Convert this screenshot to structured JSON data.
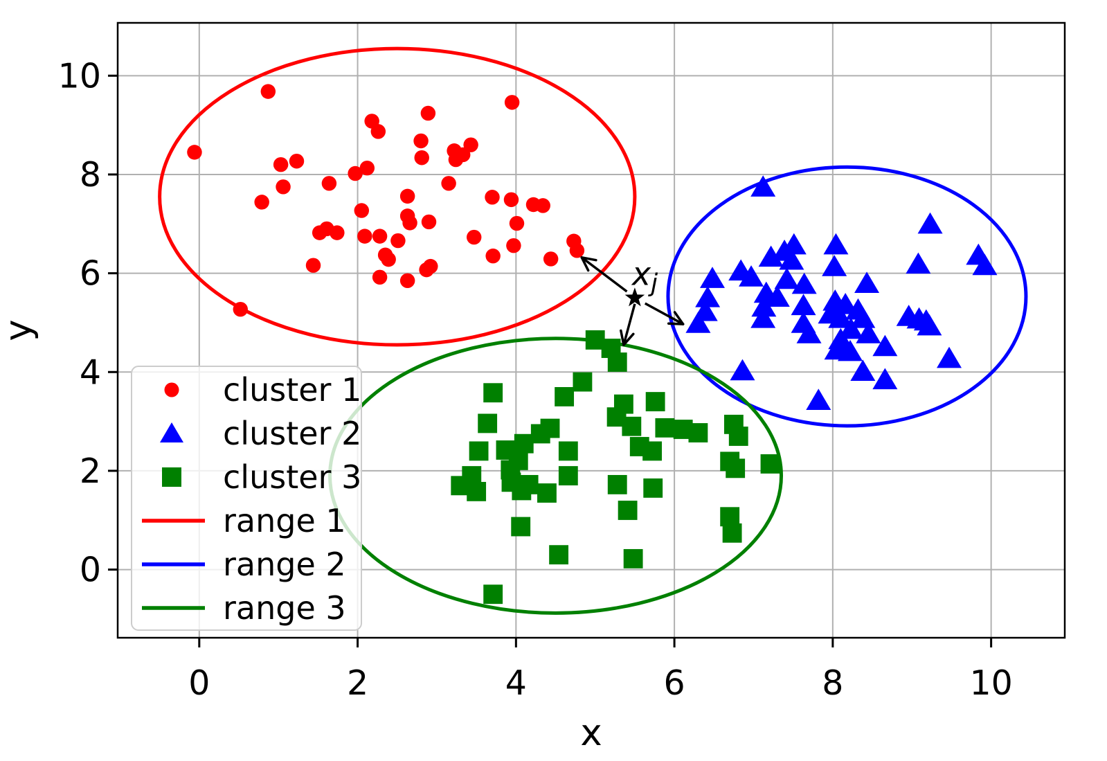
{
  "figure": {
    "background": "#ffffff",
    "axis_color": "#000000",
    "grid_color": "#b0b0b0",
    "legend_border_color": "#cccccc",
    "legend_background": "rgba(255,255,255,0.8)"
  },
  "chart_data": {
    "type": "scatter",
    "title": "",
    "xlabel": "x",
    "ylabel": "y",
    "xlim": [
      -1.03,
      10.93
    ],
    "ylim": [
      -1.38,
      11.07
    ],
    "x_ticks": [
      0,
      2,
      4,
      6,
      8,
      10
    ],
    "y_ticks": [
      0,
      2,
      4,
      6,
      8,
      10
    ],
    "grid": true,
    "legend_position": "lower left",
    "series": [
      {
        "name": "cluster 1",
        "marker": "circle",
        "color": "#ff0000",
        "points": [
          [
            0.87,
            9.68
          ],
          [
            -0.06,
            8.45
          ],
          [
            2.18,
            9.08
          ],
          [
            2.26,
            8.87
          ],
          [
            2.89,
            9.24
          ],
          [
            3.95,
            9.46
          ],
          [
            1.03,
            8.2
          ],
          [
            1.23,
            8.27
          ],
          [
            2.8,
            8.68
          ],
          [
            2.81,
            8.34
          ],
          [
            3.43,
            8.6
          ],
          [
            3.22,
            8.48
          ],
          [
            3.33,
            8.4
          ],
          [
            3.24,
            8.3
          ],
          [
            1.97,
            8.02
          ],
          [
            2.12,
            8.13
          ],
          [
            1.64,
            7.82
          ],
          [
            3.15,
            7.82
          ],
          [
            1.06,
            7.75
          ],
          [
            0.79,
            7.44
          ],
          [
            2.05,
            7.27
          ],
          [
            2.63,
            7.56
          ],
          [
            2.63,
            7.16
          ],
          [
            2.66,
            7.02
          ],
          [
            2.9,
            7.04
          ],
          [
            3.7,
            7.54
          ],
          [
            3.94,
            7.49
          ],
          [
            4.22,
            7.39
          ],
          [
            4.34,
            7.37
          ],
          [
            4.01,
            7.01
          ],
          [
            3.47,
            6.73
          ],
          [
            1.52,
            6.82
          ],
          [
            1.61,
            6.9
          ],
          [
            1.74,
            6.82
          ],
          [
            2.09,
            6.75
          ],
          [
            2.28,
            6.75
          ],
          [
            2.51,
            6.66
          ],
          [
            4.73,
            6.65
          ],
          [
            4.77,
            6.46
          ],
          [
            3.97,
            6.56
          ],
          [
            3.71,
            6.35
          ],
          [
            4.44,
            6.29
          ],
          [
            2.35,
            6.37
          ],
          [
            2.39,
            6.28
          ],
          [
            2.92,
            6.14
          ],
          [
            2.87,
            6.07
          ],
          [
            1.44,
            6.16
          ],
          [
            2.28,
            5.92
          ],
          [
            2.63,
            5.85
          ],
          [
            0.52,
            5.27
          ]
        ]
      },
      {
        "name": "cluster 2",
        "marker": "triangle",
        "color": "#0000ff",
        "points": [
          [
            7.12,
            7.75
          ],
          [
            6.48,
            5.9
          ],
          [
            6.84,
            6.05
          ],
          [
            6.97,
            5.93
          ],
          [
            7.22,
            6.33
          ],
          [
            7.39,
            6.45
          ],
          [
            7.51,
            6.58
          ],
          [
            7.48,
            6.27
          ],
          [
            8.04,
            6.58
          ],
          [
            8.02,
            6.14
          ],
          [
            7.16,
            5.6
          ],
          [
            7.3,
            5.52
          ],
          [
            7.42,
            5.88
          ],
          [
            7.13,
            5.32
          ],
          [
            7.64,
            5.78
          ],
          [
            7.63,
            5.35
          ],
          [
            6.42,
            5.51
          ],
          [
            6.39,
            5.23
          ],
          [
            6.3,
            4.99
          ],
          [
            7.12,
            5.09
          ],
          [
            7.63,
            4.99
          ],
          [
            7.7,
            4.78
          ],
          [
            8.43,
            5.8
          ],
          [
            8.03,
            5.44
          ],
          [
            8.16,
            5.37
          ],
          [
            7.97,
            5.18
          ],
          [
            8.1,
            5.09
          ],
          [
            8.32,
            5.26
          ],
          [
            8.38,
            5.09
          ],
          [
            8.23,
            4.87
          ],
          [
            8.45,
            4.78
          ],
          [
            8.1,
            4.66
          ],
          [
            8.15,
            4.52
          ],
          [
            8.05,
            4.45
          ],
          [
            8.22,
            4.42
          ],
          [
            8.66,
            4.52
          ],
          [
            8.96,
            5.13
          ],
          [
            9.09,
            5.08
          ],
          [
            9.18,
            5.04
          ],
          [
            9.22,
            4.94
          ],
          [
            9.47,
            4.28
          ],
          [
            8.38,
            4.02
          ],
          [
            8.66,
            3.85
          ],
          [
            9.23,
            7.0
          ],
          [
            9.08,
            6.19
          ],
          [
            9.84,
            6.37
          ],
          [
            9.92,
            6.16
          ],
          [
            6.86,
            4.03
          ],
          [
            7.82,
            3.43
          ]
        ]
      },
      {
        "name": "cluster 3",
        "marker": "square",
        "color": "#008000",
        "points": [
          [
            5.0,
            4.65
          ],
          [
            5.2,
            4.48
          ],
          [
            5.28,
            4.2
          ],
          [
            4.84,
            3.8
          ],
          [
            4.61,
            3.5
          ],
          [
            3.71,
            3.58
          ],
          [
            3.64,
            2.96
          ],
          [
            4.1,
            2.55
          ],
          [
            4.31,
            2.75
          ],
          [
            4.43,
            2.86
          ],
          [
            3.53,
            2.4
          ],
          [
            3.87,
            2.42
          ],
          [
            4.03,
            2.21
          ],
          [
            3.93,
            2.02
          ],
          [
            4.66,
            2.4
          ],
          [
            4.66,
            1.9
          ],
          [
            3.44,
            1.9
          ],
          [
            3.3,
            1.7
          ],
          [
            3.5,
            1.58
          ],
          [
            3.94,
            1.77
          ],
          [
            4.07,
            1.6
          ],
          [
            4.16,
            1.72
          ],
          [
            4.39,
            1.55
          ],
          [
            5.28,
            1.72
          ],
          [
            5.73,
            1.65
          ],
          [
            5.41,
            1.2
          ],
          [
            4.06,
            0.87
          ],
          [
            4.54,
            0.3
          ],
          [
            5.48,
            0.22
          ],
          [
            3.71,
            -0.5
          ],
          [
            5.36,
            3.35
          ],
          [
            5.27,
            3.09
          ],
          [
            5.46,
            2.9
          ],
          [
            5.76,
            3.4
          ],
          [
            5.88,
            2.87
          ],
          [
            6.11,
            2.84
          ],
          [
            6.3,
            2.77
          ],
          [
            5.56,
            2.49
          ],
          [
            5.72,
            2.4
          ],
          [
            6.75,
            2.94
          ],
          [
            6.81,
            2.7
          ],
          [
            6.7,
            2.19
          ],
          [
            6.77,
            2.05
          ],
          [
            7.21,
            2.14
          ],
          [
            6.7,
            1.07
          ],
          [
            6.73,
            0.74
          ]
        ]
      }
    ],
    "ellipses": [
      {
        "name": "range 1",
        "color": "#ff0000",
        "center": [
          2.5,
          7.55
        ],
        "rx": 3.0,
        "ry": 3.0
      },
      {
        "name": "range 2",
        "color": "#0000ff",
        "center": [
          8.18,
          5.53
        ],
        "rx": 2.26,
        "ry": 2.62
      },
      {
        "name": "range 3",
        "color": "#008000",
        "center": [
          4.5,
          1.9
        ],
        "rx": 2.85,
        "ry": 2.78
      }
    ],
    "annotation": {
      "text": "x_j",
      "base": "x",
      "subscript": "j",
      "color": "#000000",
      "star_point": [
        5.5,
        5.5
      ],
      "arrows": [
        {
          "from": [
            5.4,
            5.63
          ],
          "to": [
            4.83,
            6.32
          ]
        },
        {
          "from": [
            5.5,
            5.38
          ],
          "to": [
            5.36,
            4.55
          ]
        },
        {
          "from": [
            5.63,
            5.39
          ],
          "to": [
            6.11,
            4.97
          ]
        }
      ]
    },
    "legend": {
      "items": [
        {
          "label": "cluster 1",
          "type": "marker",
          "marker": "circle",
          "color": "#ff0000"
        },
        {
          "label": "cluster 2",
          "type": "marker",
          "marker": "triangle",
          "color": "#0000ff"
        },
        {
          "label": "cluster 3",
          "type": "marker",
          "marker": "square",
          "color": "#008000"
        },
        {
          "label": "range 1",
          "type": "line",
          "color": "#ff0000"
        },
        {
          "label": "range 2",
          "type": "line",
          "color": "#0000ff"
        },
        {
          "label": "range 3",
          "type": "line",
          "color": "#008000"
        }
      ]
    }
  }
}
